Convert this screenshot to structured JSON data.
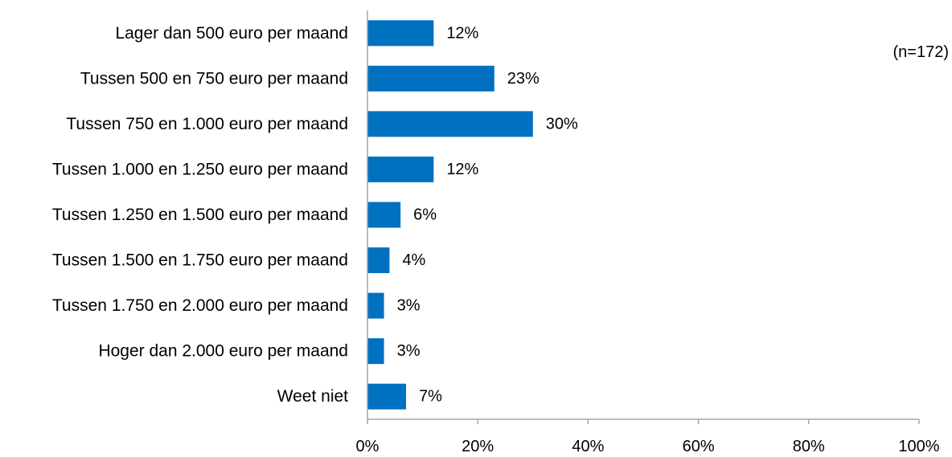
{
  "chart_data": {
    "type": "bar",
    "orientation": "horizontal",
    "categories": [
      "Lager dan 500 euro per maand",
      "Tussen 500 en 750 euro per maand",
      "Tussen 750 en 1.000 euro per maand",
      "Tussen 1.000 en 1.250 euro per maand",
      "Tussen 1.250 en 1.500 euro per maand",
      "Tussen 1.500 en 1.750 euro per maand",
      "Tussen 1.750 en 2.000 euro per maand",
      "Hoger dan 2.000 euro per maand",
      "Weet niet"
    ],
    "values": [
      12,
      23,
      30,
      12,
      6,
      4,
      3,
      3,
      7
    ],
    "value_labels": [
      "12%",
      "23%",
      "30%",
      "12%",
      "6%",
      "4%",
      "3%",
      "3%",
      "7%"
    ],
    "xlim": [
      0,
      100
    ],
    "x_ticks": [
      0,
      20,
      40,
      60,
      80,
      100
    ],
    "x_tick_labels": [
      "0%",
      "20%",
      "40%",
      "60%",
      "80%",
      "100%"
    ],
    "annotation": "(n=172)",
    "grid": false,
    "bar_color": "#0070C0",
    "title": "",
    "xlabel": "",
    "ylabel": ""
  }
}
